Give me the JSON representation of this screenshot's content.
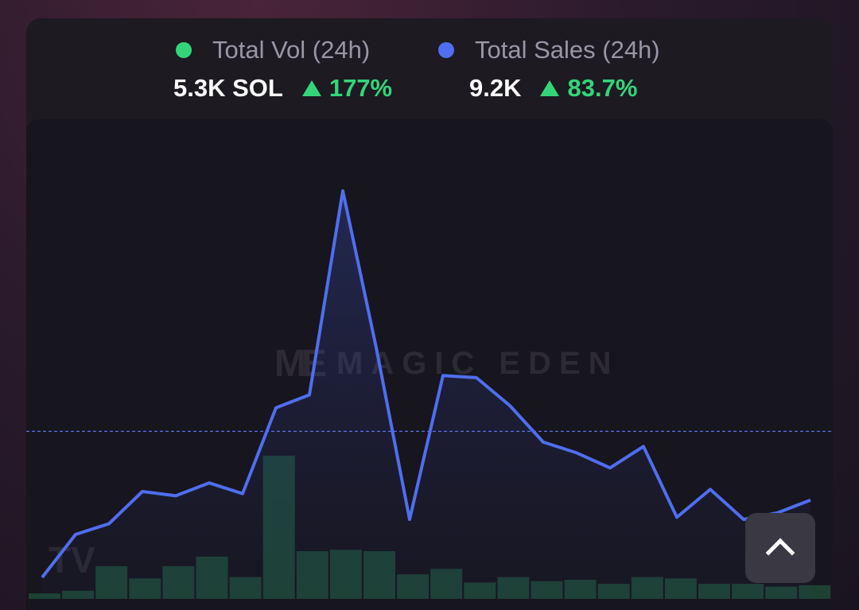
{
  "legend": {
    "volume": {
      "label": "Total Vol (24h)",
      "value": "5.3K SOL",
      "change": "177%",
      "color": "#34d57a"
    },
    "sales": {
      "label": "Total Sales (24h)",
      "value": "9.2K",
      "change": "83.7%",
      "color": "#4f6ef0"
    }
  },
  "watermark": {
    "logo": "ME",
    "text": "MAGIC EDEN"
  },
  "scroll_button": {
    "icon": "chevron-up-icon"
  },
  "chart_data": {
    "type": "line",
    "grid": false,
    "reference_line": 78,
    "series": [
      {
        "name": "Total Sales (24h)",
        "kind": "line",
        "color": "#4f6ef0",
        "values": [
          10,
          30,
          35,
          50,
          48,
          54,
          49,
          89,
          95,
          190,
          117,
          37,
          104,
          103,
          90,
          73,
          68,
          61,
          71,
          38,
          51,
          37,
          40,
          46
        ]
      },
      {
        "name": "Total Vol (24h)",
        "kind": "bar",
        "color": "#1f4a38",
        "values": [
          4,
          6,
          24,
          15,
          24,
          31,
          16,
          105,
          35,
          36,
          35,
          18,
          22,
          12,
          16,
          13,
          14,
          11,
          16,
          15,
          11,
          11,
          9,
          10
        ]
      }
    ]
  }
}
